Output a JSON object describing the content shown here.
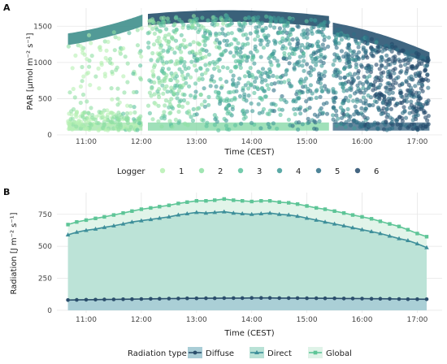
{
  "chart_data": [
    {
      "panel": "A",
      "type": "scatter",
      "xlabel": "Time (CEST)",
      "ylabel": "PAR [µmol m⁻² s⁻¹]",
      "x_ticks": [
        "11:00",
        "12:00",
        "13:00",
        "14:00",
        "15:00",
        "16:00",
        "17:00"
      ],
      "y_ticks": [
        0,
        500,
        1000,
        1500
      ],
      "xlim_hours": [
        10.47,
        17.45
      ],
      "ylim": [
        0,
        1750
      ],
      "grid": true,
      "legend_title": "Logger",
      "legend_position": "bottom",
      "series": [
        {
          "name": "1",
          "color": "#b6f0b2"
        },
        {
          "name": "2",
          "color": "#8fe0a4"
        },
        {
          "name": "3",
          "color": "#5cc29e"
        },
        {
          "name": "4",
          "color": "#3e9a96"
        },
        {
          "name": "5",
          "color": "#2f6e86"
        },
        {
          "name": "6",
          "color": "#234a6b"
        }
      ],
      "segments": [
        {
          "start": 10.67,
          "end": 12.02,
          "upper_start": 1330,
          "upper_end": 1590
        },
        {
          "start": 12.12,
          "end": 15.4,
          "upper_start": 1600,
          "upper_end": 1570,
          "upper_peak": 1650
        },
        {
          "start": 15.47,
          "end": 17.22,
          "upper_start": 1480,
          "upper_end": 1070
        }
      ]
    },
    {
      "panel": "B",
      "type": "area",
      "xlabel": "Time (CEST)",
      "ylabel": "Radiation [J m⁻² s⁻¹]",
      "x_ticks": [
        "11:00",
        "12:00",
        "13:00",
        "14:00",
        "15:00",
        "16:00",
        "17:00"
      ],
      "y_ticks": [
        0,
        250,
        500,
        750
      ],
      "xlim_hours": [
        10.47,
        17.45
      ],
      "ylim": [
        -20,
        920
      ],
      "grid": true,
      "legend_title": "Radiation type",
      "legend_position": "bottom",
      "x_hours": [
        10.67,
        10.83,
        11.0,
        11.17,
        11.33,
        11.5,
        11.67,
        11.83,
        12.0,
        12.17,
        12.33,
        12.5,
        12.67,
        12.83,
        13.0,
        13.17,
        13.33,
        13.5,
        13.67,
        13.83,
        14.0,
        14.17,
        14.33,
        14.5,
        14.67,
        14.83,
        15.0,
        15.17,
        15.33,
        15.5,
        15.67,
        15.83,
        16.0,
        16.17,
        16.33,
        16.5,
        16.67,
        16.83,
        17.0,
        17.17
      ],
      "series": [
        {
          "name": "Diffuse",
          "color": "#2c4f6c",
          "values": [
            80,
            81,
            82,
            83,
            84,
            85,
            86,
            87,
            88,
            89,
            90,
            91,
            92,
            93,
            93,
            94,
            94,
            95,
            95,
            95,
            96,
            96,
            96,
            95,
            95,
            95,
            94,
            94,
            93,
            93,
            92,
            92,
            91,
            90,
            90,
            89,
            88,
            87,
            87,
            86
          ]
        },
        {
          "name": "Direct",
          "color": "#3e8f9a",
          "values": [
            590,
            610,
            625,
            635,
            648,
            660,
            675,
            690,
            700,
            710,
            720,
            730,
            745,
            755,
            765,
            760,
            765,
            770,
            760,
            755,
            750,
            755,
            760,
            750,
            745,
            735,
            720,
            705,
            690,
            675,
            660,
            645,
            630,
            615,
            600,
            580,
            560,
            545,
            520,
            490
          ]
        },
        {
          "name": "Global",
          "color": "#5ec597",
          "values": [
            670,
            690,
            705,
            718,
            730,
            745,
            760,
            775,
            790,
            800,
            810,
            820,
            835,
            845,
            855,
            855,
            860,
            870,
            860,
            855,
            850,
            855,
            855,
            845,
            840,
            830,
            815,
            800,
            790,
            775,
            760,
            745,
            730,
            715,
            695,
            675,
            655,
            630,
            600,
            575
          ]
        }
      ]
    }
  ]
}
